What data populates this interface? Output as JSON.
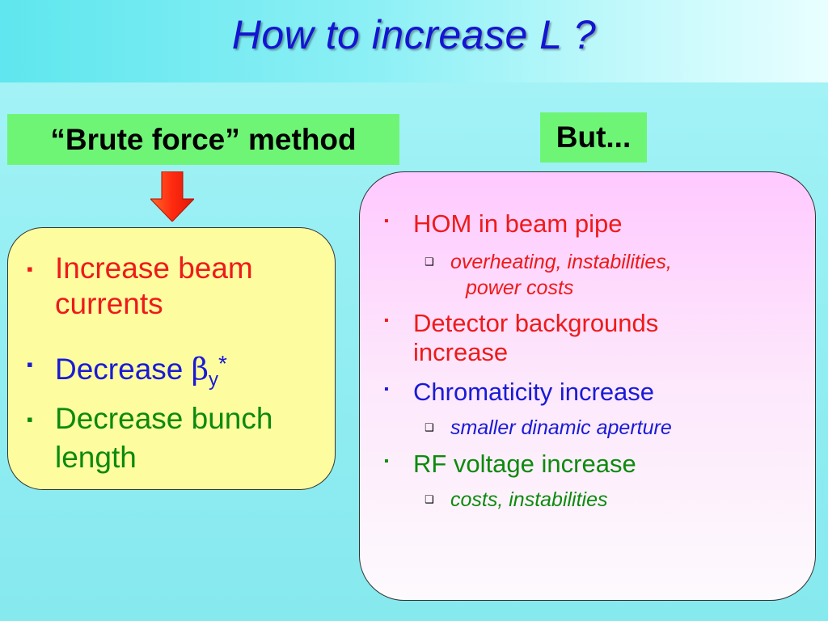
{
  "slide": {
    "title": "How to increase L ?",
    "left_label": "“Brute force” method",
    "right_label": "But...",
    "left_items": [
      {
        "bullet": "▪",
        "lines": [
          "Increase beam",
          "currents"
        ],
        "color": "#ee1a1a"
      },
      {
        "bullet": "▪",
        "prefix": "Decrease ",
        "beta": "β",
        "subscript": "y",
        "superscript": "*",
        "color": "#1a1ad6"
      },
      {
        "bullet": "▪",
        "lines": [
          "Decrease bunch",
          "length"
        ],
        "color": "#0d8a0d"
      }
    ],
    "right_items": [
      {
        "bullet": "▪",
        "text": "HOM in beam pipe",
        "color": "#ee1a1a",
        "sub": {
          "bullet": "❑",
          "lines": [
            "overheating, instabilities,",
            "power costs"
          ]
        }
      },
      {
        "bullet": "▪",
        "lines": [
          "Detector backgrounds",
          "increase"
        ],
        "color": "#ee1a1a"
      },
      {
        "bullet": "▪",
        "text": "Chromaticity increase",
        "color": "#1a1ad6",
        "sub": {
          "bullet": "❑",
          "lines": [
            "smaller dinamic aperture"
          ]
        }
      },
      {
        "bullet": "▪",
        "text": "RF voltage increase",
        "color": "#0d8a0d",
        "sub": {
          "bullet": "❑",
          "lines": [
            "costs, instabilities"
          ]
        }
      }
    ],
    "colors": {
      "title": "#1414d2",
      "label_bg": "#6ff576",
      "left_panel_bg": "#fdfda0",
      "right_panel_bg": "#ffc9ff",
      "arrow": "#ff3a1a"
    }
  }
}
